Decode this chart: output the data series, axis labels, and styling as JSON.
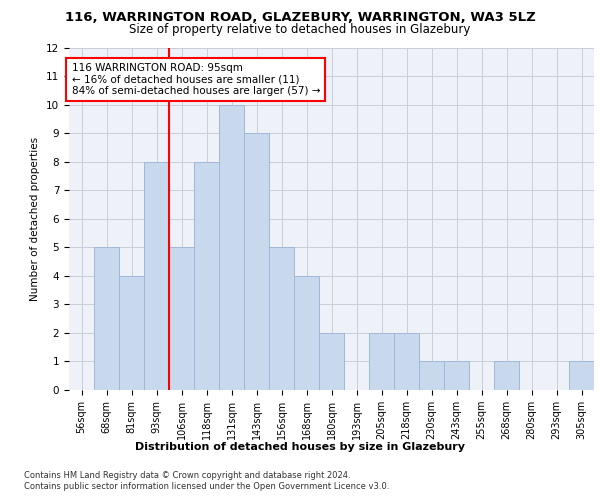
{
  "title": "116, WARRINGTON ROAD, GLAZEBURY, WARRINGTON, WA3 5LZ",
  "subtitle": "Size of property relative to detached houses in Glazebury",
  "xlabel": "Distribution of detached houses by size in Glazebury",
  "ylabel": "Number of detached properties",
  "categories": [
    "56sqm",
    "68sqm",
    "81sqm",
    "93sqm",
    "106sqm",
    "118sqm",
    "131sqm",
    "143sqm",
    "156sqm",
    "168sqm",
    "180sqm",
    "193sqm",
    "205sqm",
    "218sqm",
    "230sqm",
    "243sqm",
    "255sqm",
    "268sqm",
    "280sqm",
    "293sqm",
    "305sqm"
  ],
  "values": [
    0,
    5,
    4,
    8,
    5,
    8,
    10,
    9,
    5,
    4,
    2,
    0,
    2,
    2,
    1,
    1,
    0,
    1,
    0,
    0,
    1
  ],
  "bar_color": "#c9d9ed",
  "bar_edge_color": "#a0b8d8",
  "ylim": [
    0,
    12
  ],
  "yticks": [
    0,
    1,
    2,
    3,
    4,
    5,
    6,
    7,
    8,
    9,
    10,
    11,
    12
  ],
  "red_line_x": 3.5,
  "annotation_text": "116 WARRINGTON ROAD: 95sqm\n← 16% of detached houses are smaller (11)\n84% of semi-detached houses are larger (57) →",
  "annotation_box_color": "white",
  "annotation_box_edge_color": "red",
  "footer_line1": "Contains HM Land Registry data © Crown copyright and database right 2024.",
  "footer_line2": "Contains public sector information licensed under the Open Government Licence v3.0.",
  "background_color": "#eef2f8",
  "grid_color": "#c8cdd8"
}
